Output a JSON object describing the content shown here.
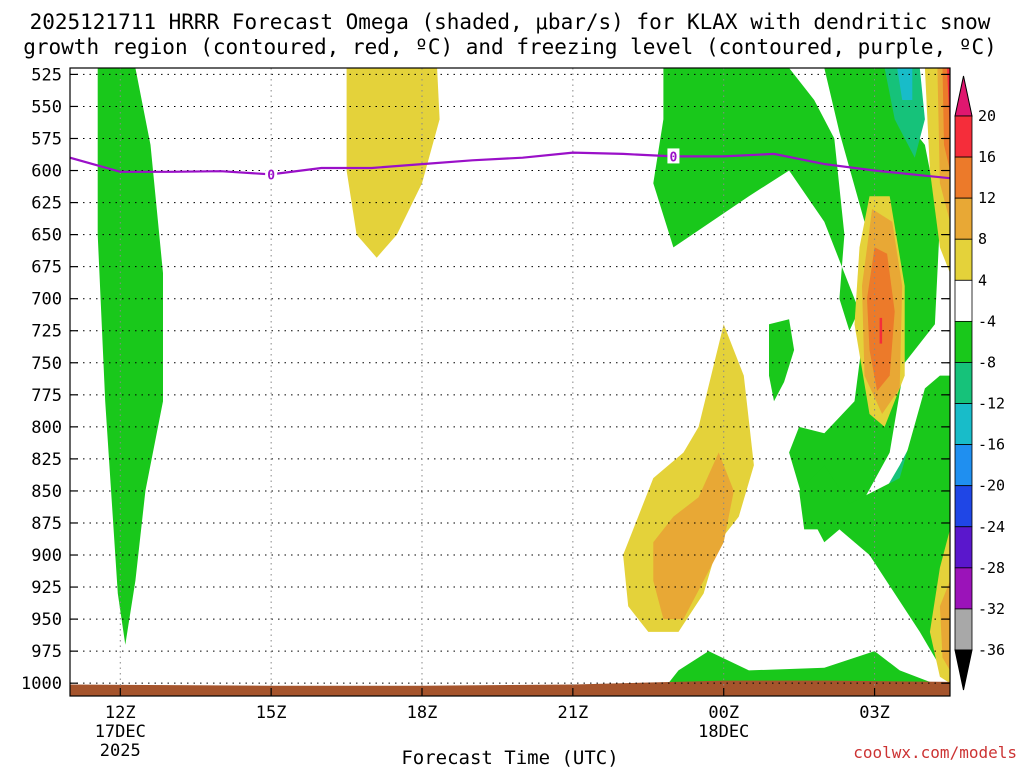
{
  "chart_data": {
    "type": "heatmap",
    "title_lines": [
      "2025121711 HRRR Forecast Omega (shaded, μbar/s) for KLAX with dendritic snow",
      "growth region (contoured, red, ºC) and freezing level (contoured, purple, ºC)"
    ],
    "xlabel": "Forecast Time (UTC)",
    "ylabel": "",
    "x_unit": "hours since 2025-12-17 11Z",
    "xlim": [
      0,
      17.5
    ],
    "y_unit": "pressure (hPa)",
    "ylim": [
      520,
      1010
    ],
    "x_ticks": [
      {
        "x": 1,
        "label": "12Z",
        "sub": [
          "17DEC",
          "2025"
        ]
      },
      {
        "x": 4,
        "label": "15Z",
        "sub": []
      },
      {
        "x": 7,
        "label": "18Z",
        "sub": []
      },
      {
        "x": 10,
        "label": "21Z",
        "sub": []
      },
      {
        "x": 13,
        "label": "00Z",
        "sub": [
          "18DEC"
        ]
      },
      {
        "x": 16,
        "label": "03Z",
        "sub": []
      }
    ],
    "y_ticks": [
      525,
      550,
      575,
      600,
      625,
      650,
      675,
      700,
      725,
      750,
      775,
      800,
      825,
      850,
      875,
      900,
      925,
      950,
      975,
      1000
    ],
    "grid": true,
    "colorbar": {
      "labels": [
        "20",
        "16",
        "12",
        "8",
        "4",
        "-4",
        "-8",
        "-12",
        "-16",
        "-20",
        "-24",
        "-28",
        "-32",
        "-36"
      ],
      "colors": [
        "#f52d3a",
        "#ec7a2a",
        "#e8a835",
        "#e4d23a",
        "#ffffff",
        "#19c81b",
        "#16c27a",
        "#18bcc9",
        "#1f8ff0",
        "#1f46e6",
        "#5a17cc",
        "#9b13b9",
        "#a8a8a8"
      ],
      "top_arrow_color": "#e0176f",
      "bottom_arrow_color": "#000000"
    },
    "freezing_level": {
      "label": "0",
      "color": "#9a10c8",
      "points": [
        [
          0,
          590
        ],
        [
          1,
          601
        ],
        [
          2,
          601
        ],
        [
          3,
          600.5
        ],
        [
          4,
          603
        ],
        [
          5,
          598
        ],
        [
          6,
          598
        ],
        [
          7,
          595
        ],
        [
          8,
          592
        ],
        [
          9,
          590
        ],
        [
          10,
          586
        ],
        [
          11,
          587
        ],
        [
          12,
          589
        ],
        [
          13,
          589
        ],
        [
          14,
          587
        ],
        [
          15,
          595
        ],
        [
          16,
          600
        ],
        [
          17,
          604
        ],
        [
          17.5,
          606
        ]
      ],
      "label_positions": [
        [
          4,
          603
        ],
        [
          12,
          589
        ]
      ]
    },
    "shaded_regions": [
      {
        "color": "#19c81b",
        "points": [
          [
            0.55,
            520
          ],
          [
            1.3,
            520
          ],
          [
            1.6,
            580
          ],
          [
            1.85,
            680
          ],
          [
            1.85,
            780
          ],
          [
            1.5,
            850
          ],
          [
            1.3,
            920
          ],
          [
            1.1,
            970
          ],
          [
            0.95,
            930
          ],
          [
            0.7,
            780
          ],
          [
            0.55,
            650
          ]
        ]
      },
      {
        "color": "#e4d23a",
        "points": [
          [
            5.5,
            520
          ],
          [
            7.3,
            520
          ],
          [
            7.35,
            560
          ],
          [
            7.0,
            610
          ],
          [
            6.5,
            650
          ],
          [
            6.1,
            668
          ],
          [
            5.7,
            650
          ],
          [
            5.5,
            600
          ]
        ]
      },
      {
        "color": "#19c81b",
        "points": [
          [
            11.8,
            520
          ],
          [
            13.5,
            520
          ],
          [
            14.3,
            520
          ],
          [
            14.8,
            545
          ],
          [
            15.2,
            575
          ],
          [
            15.4,
            650
          ],
          [
            15.3,
            700
          ],
          [
            15.5,
            725
          ],
          [
            15.8,
            700
          ],
          [
            15.8,
            640
          ],
          [
            15.3,
            570
          ],
          [
            15.0,
            520
          ],
          [
            16.3,
            520
          ],
          [
            16.6,
            560
          ],
          [
            17.0,
            580
          ],
          [
            17.3,
            640
          ],
          [
            17.2,
            720
          ],
          [
            16.6,
            750
          ],
          [
            16.3,
            820
          ],
          [
            15.6,
            870
          ],
          [
            15.0,
            890
          ],
          [
            14.6,
            860
          ],
          [
            14.3,
            820
          ],
          [
            14.5,
            800
          ],
          [
            15.0,
            805
          ],
          [
            15.6,
            780
          ],
          [
            15.8,
            720
          ],
          [
            15.4,
            680
          ],
          [
            15.0,
            640
          ],
          [
            14.3,
            600
          ],
          [
            13.5,
            620
          ],
          [
            12.0,
            660
          ],
          [
            11.6,
            610
          ],
          [
            11.8,
            560
          ]
        ]
      },
      {
        "color": "#16c27a",
        "points": [
          [
            16.2,
            520
          ],
          [
            16.9,
            520
          ],
          [
            17.0,
            560
          ],
          [
            16.8,
            590
          ],
          [
            16.4,
            560
          ]
        ]
      },
      {
        "color": "#18bcc9",
        "points": [
          [
            16.45,
            520
          ],
          [
            16.75,
            520
          ],
          [
            16.75,
            545
          ],
          [
            16.55,
            545
          ]
        ]
      },
      {
        "color": "#19c81b",
        "points": [
          [
            13.9,
            720
          ],
          [
            14.3,
            716
          ],
          [
            14.4,
            740
          ],
          [
            14.2,
            765
          ],
          [
            14.0,
            780
          ],
          [
            13.9,
            760
          ]
        ]
      },
      {
        "color": "#e4d23a",
        "points": [
          [
            15.9,
            620
          ],
          [
            16.3,
            620
          ],
          [
            16.6,
            690
          ],
          [
            16.6,
            760
          ],
          [
            16.2,
            800
          ],
          [
            15.9,
            790
          ],
          [
            15.6,
            720
          ],
          [
            15.7,
            660
          ]
        ]
      },
      {
        "color": "#ec7a2a",
        "points": [
          [
            16.0,
            650
          ],
          [
            16.25,
            650
          ],
          [
            16.45,
            700
          ],
          [
            16.4,
            760
          ],
          [
            16.1,
            780
          ],
          [
            15.9,
            740
          ],
          [
            15.85,
            690
          ]
        ]
      },
      {
        "color": "#e8a835",
        "points": [
          [
            15.95,
            630
          ],
          [
            16.35,
            640
          ],
          [
            16.55,
            690
          ],
          [
            16.5,
            770
          ],
          [
            16.15,
            790
          ],
          [
            15.8,
            760
          ],
          [
            15.75,
            690
          ]
        ]
      },
      {
        "color": "#ec7a2a",
        "points": [
          [
            16.0,
            660
          ],
          [
            16.25,
            665
          ],
          [
            16.4,
            710
          ],
          [
            16.3,
            760
          ],
          [
            16.05,
            772
          ],
          [
            15.9,
            740
          ],
          [
            15.85,
            700
          ]
        ]
      },
      {
        "color": "#f52d3a",
        "points": [
          [
            16.1,
            715
          ],
          [
            16.15,
            715
          ],
          [
            16.15,
            735
          ],
          [
            16.1,
            735
          ]
        ]
      },
      {
        "color": "#16c27a",
        "points": [
          [
            15.6,
            890
          ],
          [
            15.9,
            870
          ],
          [
            16.2,
            850
          ],
          [
            16.5,
            830
          ],
          [
            16.9,
            800
          ],
          [
            17.2,
            790
          ],
          [
            17.3,
            820
          ],
          [
            17.1,
            880
          ],
          [
            16.9,
            905
          ],
          [
            16.3,
            905
          ],
          [
            15.9,
            895
          ]
        ]
      },
      {
        "color": "#19c81b",
        "points": [
          [
            14.5,
            850
          ],
          [
            15.0,
            830
          ],
          [
            15.5,
            860
          ],
          [
            16.5,
            840
          ],
          [
            17.0,
            770
          ],
          [
            17.3,
            760
          ],
          [
            17.5,
            760
          ],
          [
            17.5,
            1000
          ],
          [
            17.2,
            980
          ],
          [
            16.9,
            960
          ],
          [
            16.4,
            930
          ],
          [
            15.9,
            900
          ],
          [
            15.3,
            880
          ],
          [
            14.6,
            880
          ]
        ]
      },
      {
        "color": "#e4d23a",
        "points": [
          [
            11.0,
            900
          ],
          [
            11.3,
            870
          ],
          [
            11.6,
            840
          ],
          [
            12.2,
            820
          ],
          [
            12.5,
            800
          ],
          [
            13.0,
            720
          ],
          [
            13.4,
            760
          ],
          [
            13.6,
            830
          ],
          [
            13.3,
            870
          ],
          [
            12.9,
            890
          ],
          [
            12.6,
            930
          ],
          [
            12.1,
            960
          ],
          [
            11.5,
            960
          ],
          [
            11.1,
            940
          ]
        ]
      },
      {
        "color": "#e8a835",
        "points": [
          [
            11.6,
            890
          ],
          [
            12.0,
            870
          ],
          [
            12.5,
            855
          ],
          [
            12.9,
            820
          ],
          [
            13.2,
            850
          ],
          [
            13.0,
            890
          ],
          [
            12.6,
            920
          ],
          [
            12.2,
            950
          ],
          [
            11.8,
            950
          ],
          [
            11.6,
            920
          ]
        ]
      },
      {
        "color": "#e4d23a",
        "points": [
          [
            17.1,
            960
          ],
          [
            17.3,
            910
          ],
          [
            17.5,
            880
          ],
          [
            17.5,
            1000
          ],
          [
            17.3,
            995
          ]
        ]
      },
      {
        "color": "#e8a835",
        "points": [
          [
            17.3,
            940
          ],
          [
            17.5,
            920
          ],
          [
            17.5,
            990
          ],
          [
            17.35,
            980
          ]
        ]
      },
      {
        "color": "#19c81b",
        "points": [
          [
            11.7,
            1010
          ],
          [
            12.1,
            990
          ],
          [
            12.7,
            975
          ],
          [
            13.5,
            990
          ],
          [
            15.0,
            988
          ],
          [
            16.0,
            975
          ],
          [
            16.5,
            990
          ],
          [
            17.5,
            1005
          ],
          [
            17.5,
            1010
          ]
        ]
      },
      {
        "color": "#e4d23a",
        "points": [
          [
            17.0,
            520
          ],
          [
            17.5,
            520
          ],
          [
            17.5,
            680
          ],
          [
            17.3,
            660
          ],
          [
            17.1,
            600
          ]
        ]
      },
      {
        "color": "#e8a835",
        "points": [
          [
            17.25,
            520
          ],
          [
            17.5,
            520
          ],
          [
            17.5,
            640
          ],
          [
            17.3,
            610
          ]
        ]
      },
      {
        "color": "#ec7a2a",
        "points": [
          [
            17.35,
            520
          ],
          [
            17.5,
            520
          ],
          [
            17.5,
            600
          ],
          [
            17.38,
            580
          ]
        ]
      },
      {
        "color": "#f52d3a",
        "points": [
          [
            17.44,
            520
          ],
          [
            17.5,
            520
          ],
          [
            17.5,
            570
          ]
        ]
      }
    ],
    "ground": {
      "color": "#a5542c",
      "top_hpa": [
        [
          0,
          1001
        ],
        [
          4,
          1002
        ],
        [
          7,
          1002
        ],
        [
          10,
          1001
        ],
        [
          13,
          998
        ],
        [
          15,
          998
        ],
        [
          17.5,
          999
        ]
      ]
    }
  },
  "credit": "coolwx.com/models"
}
